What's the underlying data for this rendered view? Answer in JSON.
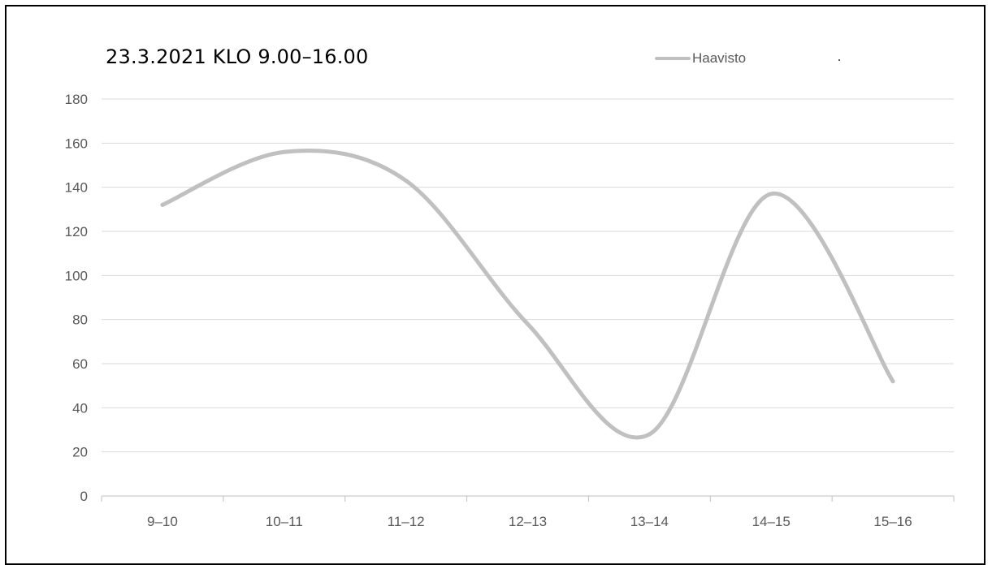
{
  "chart_data": {
    "type": "line",
    "title": "23.3.2021 KLO 9.00–16.00",
    "xlabel": "",
    "ylabel": "",
    "categories": [
      "9–10",
      "10–11",
      "11–12",
      "12–13",
      "13–14",
      "14–15",
      "15–16"
    ],
    "series": [
      {
        "name": "Haavisto",
        "values": [
          132,
          156,
          143,
          78,
          28,
          137,
          52
        ],
        "color": "#c0c0c0",
        "smooth": true
      }
    ],
    "ylim": [
      0,
      180
    ],
    "yticks": [
      "0",
      "20",
      "40",
      "60",
      "80",
      "100",
      "120",
      "140",
      "160",
      "180"
    ],
    "grid": true,
    "legend_position": "top-right",
    "colors": {
      "gridline": "#d9d9d9",
      "axis": "#bfbfbf",
      "tick_text": "#595959",
      "title_text": "#000000"
    }
  }
}
